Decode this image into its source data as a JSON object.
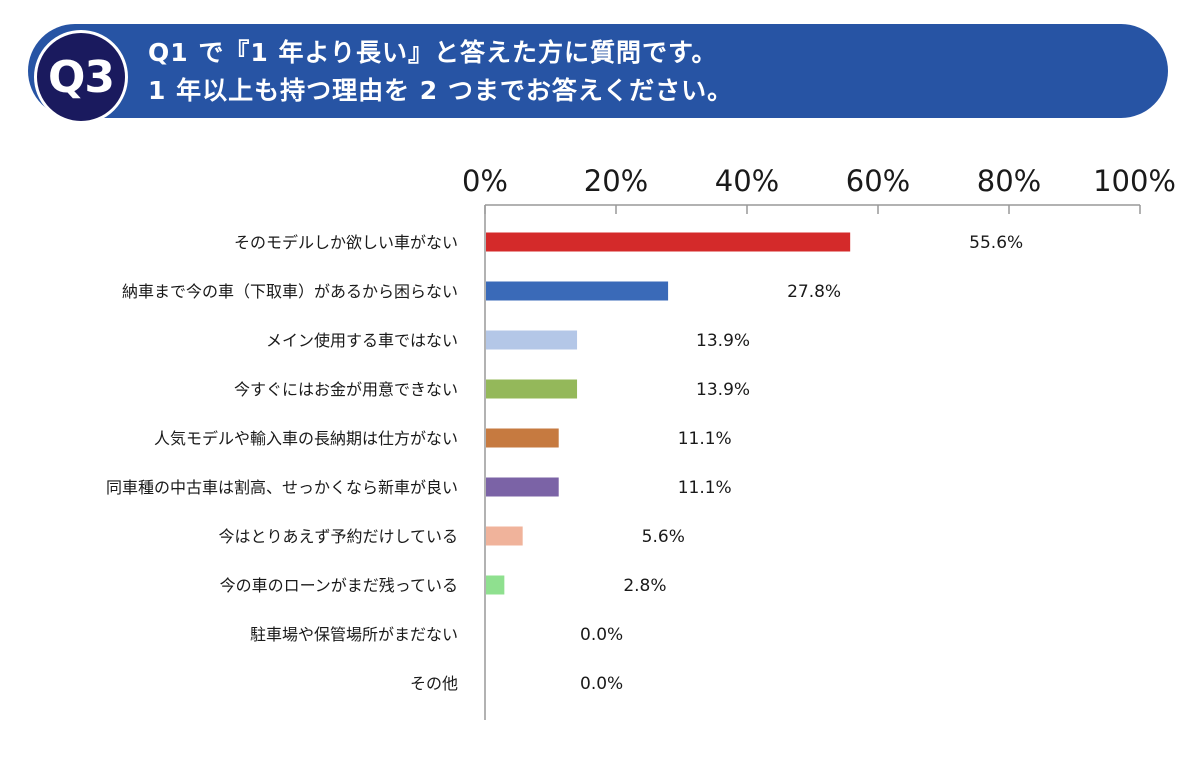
{
  "question": {
    "badge": "Q3",
    "line1": "Q1 で『1 年より長い』と答えた方に質問です。",
    "line2": "1 年以上も持つ理由を 2 つまでお答えください。"
  },
  "colors": {
    "banner": "#2754a4",
    "badge": "#1a1a5e"
  },
  "chart_data": {
    "type": "bar",
    "orientation": "horizontal",
    "xlim": [
      0,
      100
    ],
    "x_ticks": [
      "0%",
      "20%",
      "40%",
      "60%",
      "80%",
      "100%"
    ],
    "grid": false,
    "categories": [
      "そのモデルしか欲しい車がない",
      "納車まで今の車（下取車）があるから困らない",
      "メイン使用する車ではない",
      "今すぐにはお金が用意できない",
      "人気モデルや輸入車の長納期は仕方がない",
      "同車種の中古車は割高、せっかくなら新車が良い",
      "今はとりあえず予約だけしている",
      "今の車のローンがまだ残っている",
      "駐車場や保管場所がまだない",
      "その他"
    ],
    "values": [
      55.6,
      27.8,
      13.9,
      13.9,
      11.1,
      11.1,
      5.6,
      2.8,
      0.0,
      0.0
    ],
    "value_labels": [
      "55.6%",
      "27.8%",
      "13.9%",
      "13.9%",
      "11.1%",
      "11.1%",
      "5.6%",
      "2.8%",
      "0.0%",
      "0.0%"
    ],
    "bar_colors": [
      "#d42a2a",
      "#3a6ab8",
      "#b4c7e7",
      "#94b85a",
      "#c67a40",
      "#7b63a6",
      "#f0b39b",
      "#8fe08f",
      "#cccccc",
      "#cccccc"
    ]
  }
}
